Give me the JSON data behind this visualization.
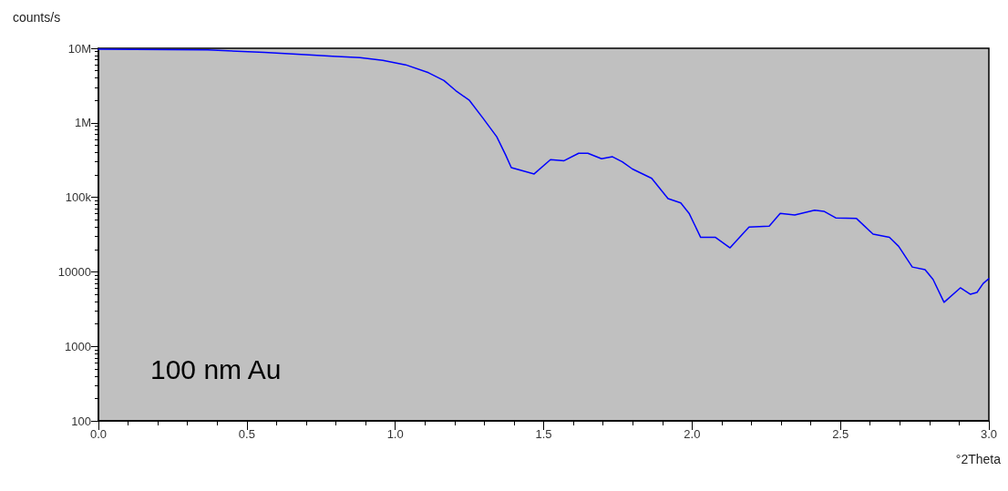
{
  "chart_data": {
    "type": "line",
    "xlabel": "°2Theta",
    "ylabel": "counts/s",
    "annotations": [
      "100 nm Au"
    ],
    "x": [
      0,
      0.368,
      0.559,
      0.697,
      0.789,
      0.881,
      0.958,
      1.035,
      1.112,
      1.164,
      1.204,
      1.25,
      1.296,
      1.342,
      1.372,
      1.391,
      1.468,
      1.523,
      1.569,
      1.618,
      1.649,
      1.695,
      1.732,
      1.765,
      1.799,
      1.864,
      1.919,
      1.962,
      1.99,
      2.029,
      2.079,
      2.128,
      2.192,
      2.26,
      2.297,
      2.346,
      2.413,
      2.444,
      2.484,
      2.554,
      2.61,
      2.665,
      2.696,
      2.742,
      2.785,
      2.812,
      2.849,
      2.904,
      2.938,
      2.96,
      2.981,
      3.0
    ],
    "series": [
      {
        "color": "#0000ff",
        "values": [
          9700000,
          9500000,
          8800000,
          8200000,
          7800000,
          7500000,
          6900000,
          6000000,
          4700000,
          3700000,
          2700000,
          2000000,
          1150000,
          650000,
          370000,
          250000,
          206000,
          320000,
          310000,
          390000,
          390000,
          330000,
          350000,
          300000,
          240000,
          180000,
          96000,
          84000,
          61000,
          29000,
          29000,
          21000,
          40000,
          41000,
          61000,
          58000,
          67000,
          65000,
          53000,
          52000,
          32000,
          29000,
          22000,
          11600,
          10700,
          7900,
          3900,
          6100,
          5000,
          5300,
          7000,
          8100
        ]
      }
    ],
    "xlim": [
      0,
      3
    ],
    "xticks": [
      {
        "value": 0,
        "label": "0.0"
      },
      0.5,
      {
        "value": 1,
        "label": "1.0"
      },
      1.5,
      {
        "value": 2,
        "label": "2.0"
      },
      2.5,
      {
        "value": 3,
        "label": "3.0"
      }
    ],
    "ylim": [
      100,
      10000000
    ],
    "yticks": [
      100,
      1000,
      10000,
      {
        "value": 100000,
        "label": "100k"
      },
      {
        "value": 1000000,
        "label": "1M"
      },
      {
        "value": 10000000,
        "label": "10M"
      }
    ],
    "log": "y",
    "grid": false,
    "marker": "none",
    "line_style": "solid"
  }
}
